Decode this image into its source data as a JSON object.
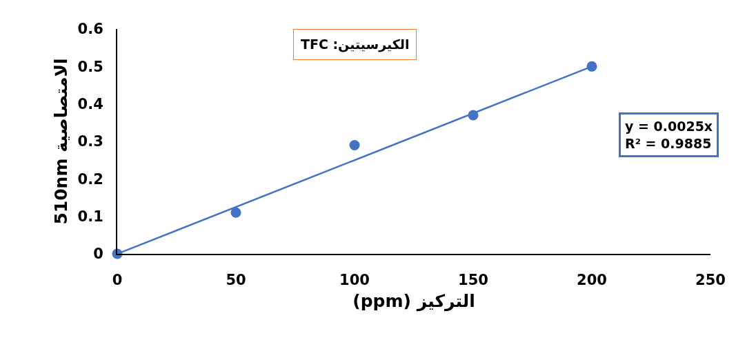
{
  "chart_data": {
    "type": "scatter",
    "title": "TFC :الكيرسيتين",
    "xlabel": "(ppm) التركيز",
    "ylabel": "510nm الامتصاصية",
    "x": [
      0,
      50,
      100,
      150,
      200
    ],
    "series": [
      {
        "color": "#4472c4",
        "values": [
          0,
          0.11,
          0.29,
          0.37,
          0.5
        ],
        "marker": "circle"
      },
      {
        "type": "line",
        "color": "#4472c4",
        "x": [
          0,
          200
        ],
        "values": [
          0,
          0.5
        ],
        "line_style": "solid",
        "marker": "none"
      }
    ],
    "annotations": [
      "y = 0.0025x\nR² = 0.9885"
    ],
    "xlim": [
      0,
      250
    ],
    "xticks": [
      0,
      50,
      100,
      150,
      200,
      250
    ],
    "ylim": [
      0,
      0.6
    ],
    "yticks": [
      0,
      0.1,
      0.2,
      0.3,
      0.4,
      0.5,
      0.6
    ]
  }
}
